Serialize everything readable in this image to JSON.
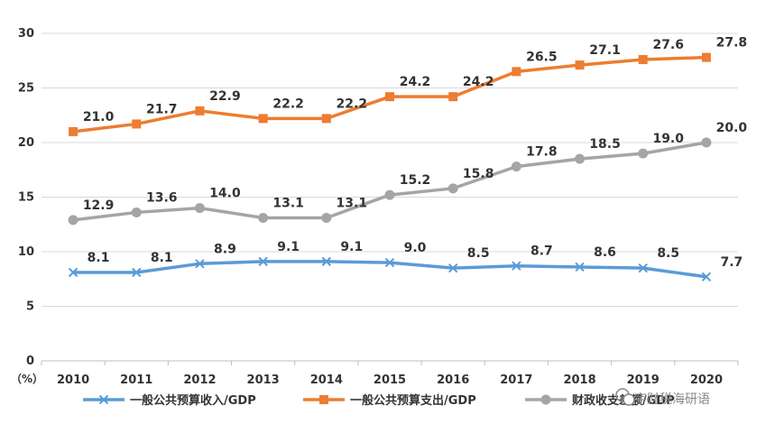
{
  "chart_data": {
    "type": "line",
    "categories": [
      "2010",
      "2011",
      "2012",
      "2013",
      "2014",
      "2015",
      "2016",
      "2017",
      "2018",
      "2019",
      "2020"
    ],
    "ylim": [
      0,
      30
    ],
    "yticks": [
      0,
      5,
      10,
      15,
      20,
      25,
      30
    ],
    "grid": true,
    "unit_label": "（%）",
    "legend_position": "bottom",
    "series": [
      {
        "name": "一般公共预算收入/GDP",
        "color": "#5b9bd5",
        "marker": "x",
        "values": [
          8.1,
          8.1,
          8.9,
          9.1,
          9.1,
          9.0,
          8.5,
          8.7,
          8.6,
          8.5,
          7.7
        ],
        "labels": [
          "8.1",
          "8.1",
          "8.9",
          "9.1",
          "9.1",
          "9.0",
          "8.5",
          "8.7",
          "8.6",
          "8.5",
          "7.7"
        ]
      },
      {
        "name": "一般公共预算支出/GDP",
        "color": "#ed7d31",
        "marker": "square",
        "values": [
          21.0,
          21.7,
          22.9,
          22.2,
          22.2,
          24.2,
          24.2,
          26.5,
          27.1,
          27.6,
          27.8
        ],
        "labels": [
          "21.0",
          "21.7",
          "22.9",
          "22.2",
          "22.2",
          "24.2",
          "24.2",
          "26.5",
          "27.1",
          "27.6",
          "27.8"
        ]
      },
      {
        "name": "财政收支差额/GDP",
        "color": "#a5a5a5",
        "marker": "circle",
        "values": [
          12.9,
          13.6,
          14.0,
          13.1,
          13.1,
          15.2,
          15.8,
          17.8,
          18.5,
          19.0,
          20.0
        ],
        "labels": [
          "12.9",
          "13.6",
          "14.0",
          "13.1",
          "13.1",
          "15.2",
          "15.8",
          "17.8",
          "18.5",
          "19.0",
          "20.0"
        ]
      }
    ]
  },
  "watermark": {
    "text": "宇财税海研语",
    "icon": "wechat-icon"
  }
}
